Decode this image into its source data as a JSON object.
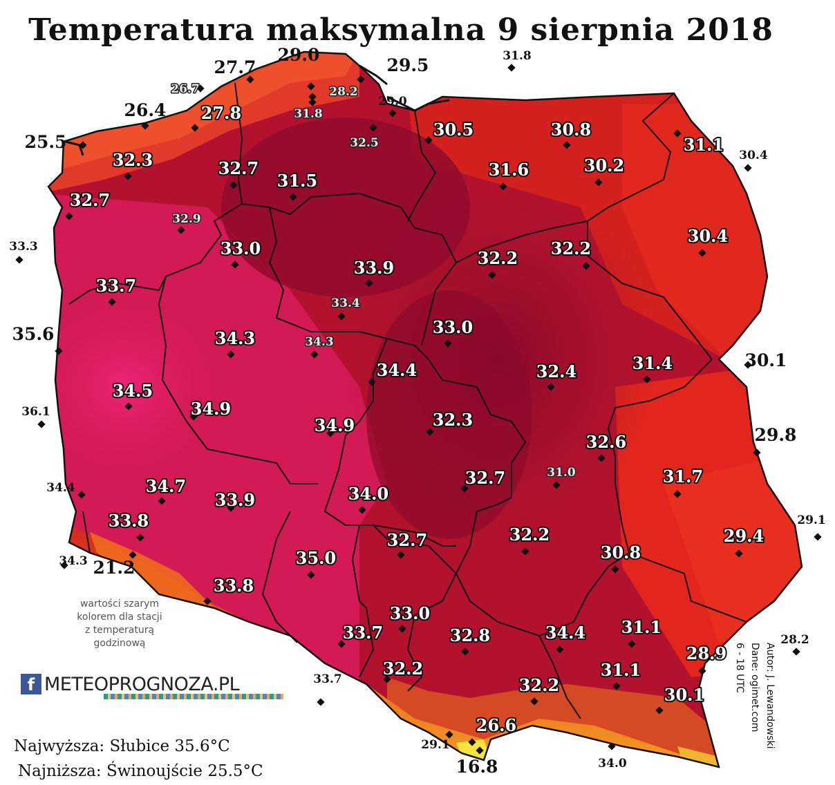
{
  "title": "Temperatura maksymalna 9 sierpnia 2018",
  "note_lines": [
    "wartości szarym",
    "kolorem dla stacji",
    "z temperaturą",
    "godzinową"
  ],
  "logo": {
    "fb": "f",
    "text": "METEOPROGNOZA.PL"
  },
  "records": {
    "max": "Najwyższa: Słubice 35.6°C",
    "min": "Najniższa: Świnoujście 25.5°C"
  },
  "credits": {
    "author": "Autor: J. Lewandowski",
    "data": "Dane: ogimet.com",
    "period": "6 - 18 UTC"
  },
  "colors": {
    "coast_orange": "#ee4a2a",
    "north_red": "#c81e28",
    "east_red": "#e0231f",
    "central_dark": "#8e0a2c",
    "west_pink": "#d81a5c",
    "west_hot": "#e8206e",
    "mountain_yellow": "#f7e43a"
  },
  "stations": [
    {
      "value": "29.0",
      "style": "big"
    },
    {
      "value": "27.7",
      "style": "big"
    },
    {
      "value": "29.5",
      "style": "big"
    },
    {
      "value": "31.8",
      "style": "small"
    },
    {
      "value": "26.7",
      "style": "grey"
    },
    {
      "value": "28.2",
      "style": "grey"
    },
    {
      "value": "31.8",
      "style": "grey"
    },
    {
      "value": "29.0",
      "style": "small"
    },
    {
      "value": "26.4",
      "style": "big"
    },
    {
      "value": "27.8",
      "style": "white"
    },
    {
      "value": "30.5",
      "style": "white"
    },
    {
      "value": "30.8",
      "style": "white"
    },
    {
      "value": "25.5",
      "style": "big"
    },
    {
      "value": "32.5",
      "style": "grey"
    },
    {
      "value": "32.3",
      "style": "white"
    },
    {
      "value": "32.7",
      "style": "white"
    },
    {
      "value": "31.1",
      "style": "white"
    },
    {
      "value": "30.4",
      "style": "small"
    },
    {
      "value": "31.6",
      "style": "white"
    },
    {
      "value": "30.2",
      "style": "white"
    },
    {
      "value": "31.5",
      "style": "white"
    },
    {
      "value": "32.7",
      "style": "white"
    },
    {
      "value": "32.9",
      "style": "grey"
    },
    {
      "value": "30.4",
      "style": "white"
    },
    {
      "value": "33.3",
      "style": "small"
    },
    {
      "value": "33.0",
      "style": "white"
    },
    {
      "value": "33.9",
      "style": "white"
    },
    {
      "value": "32.2",
      "style": "white"
    },
    {
      "value": "32.2",
      "style": "white"
    },
    {
      "value": "33.7",
      "style": "white"
    },
    {
      "value": "33.4",
      "style": "grey"
    },
    {
      "value": "35.6",
      "style": "big"
    },
    {
      "value": "34.3",
      "style": "white"
    },
    {
      "value": "34.3",
      "style": "grey"
    },
    {
      "value": "33.0",
      "style": "white"
    },
    {
      "value": "30.1",
      "style": "big"
    },
    {
      "value": "34.4",
      "style": "white"
    },
    {
      "value": "32.4",
      "style": "white"
    },
    {
      "value": "31.4",
      "style": "white"
    },
    {
      "value": "34.5",
      "style": "white"
    },
    {
      "value": "36.1",
      "style": "small"
    },
    {
      "value": "34.9",
      "style": "white"
    },
    {
      "value": "34.9",
      "style": "white"
    },
    {
      "value": "32.3",
      "style": "white"
    },
    {
      "value": "32.6",
      "style": "white"
    },
    {
      "value": "29.8",
      "style": "big"
    },
    {
      "value": "34.4",
      "style": "small"
    },
    {
      "value": "34.7",
      "style": "white"
    },
    {
      "value": "32.7",
      "style": "white"
    },
    {
      "value": "31.0",
      "style": "grey"
    },
    {
      "value": "31.7",
      "style": "white"
    },
    {
      "value": "33.9",
      "style": "white"
    },
    {
      "value": "34.0",
      "style": "white"
    },
    {
      "value": "33.8",
      "style": "white"
    },
    {
      "value": "29.1",
      "style": "small"
    },
    {
      "value": "32.7",
      "style": "white"
    },
    {
      "value": "32.2",
      "style": "white"
    },
    {
      "value": "29.4",
      "style": "white"
    },
    {
      "value": "34.3",
      "style": "small"
    },
    {
      "value": "21.2",
      "style": "big"
    },
    {
      "value": "35.0",
      "style": "white"
    },
    {
      "value": "30.8",
      "style": "white"
    },
    {
      "value": "33.8",
      "style": "white"
    },
    {
      "value": "33.0",
      "style": "white"
    },
    {
      "value": "31.1",
      "style": "white"
    },
    {
      "value": "33.7",
      "style": "white"
    },
    {
      "value": "32.8",
      "style": "white"
    },
    {
      "value": "34.4",
      "style": "white"
    },
    {
      "value": "28.2",
      "style": "small"
    },
    {
      "value": "28.9",
      "style": "white"
    },
    {
      "value": "33.7",
      "style": "small"
    },
    {
      "value": "32.2",
      "style": "white"
    },
    {
      "value": "31.1",
      "style": "white"
    },
    {
      "value": "32.2",
      "style": "white"
    },
    {
      "value": "30.1",
      "style": "white"
    },
    {
      "value": "26.6",
      "style": "white"
    },
    {
      "value": "29.1",
      "style": "small"
    },
    {
      "value": "34.0",
      "style": "small"
    },
    {
      "value": "16.8",
      "style": "big"
    }
  ]
}
